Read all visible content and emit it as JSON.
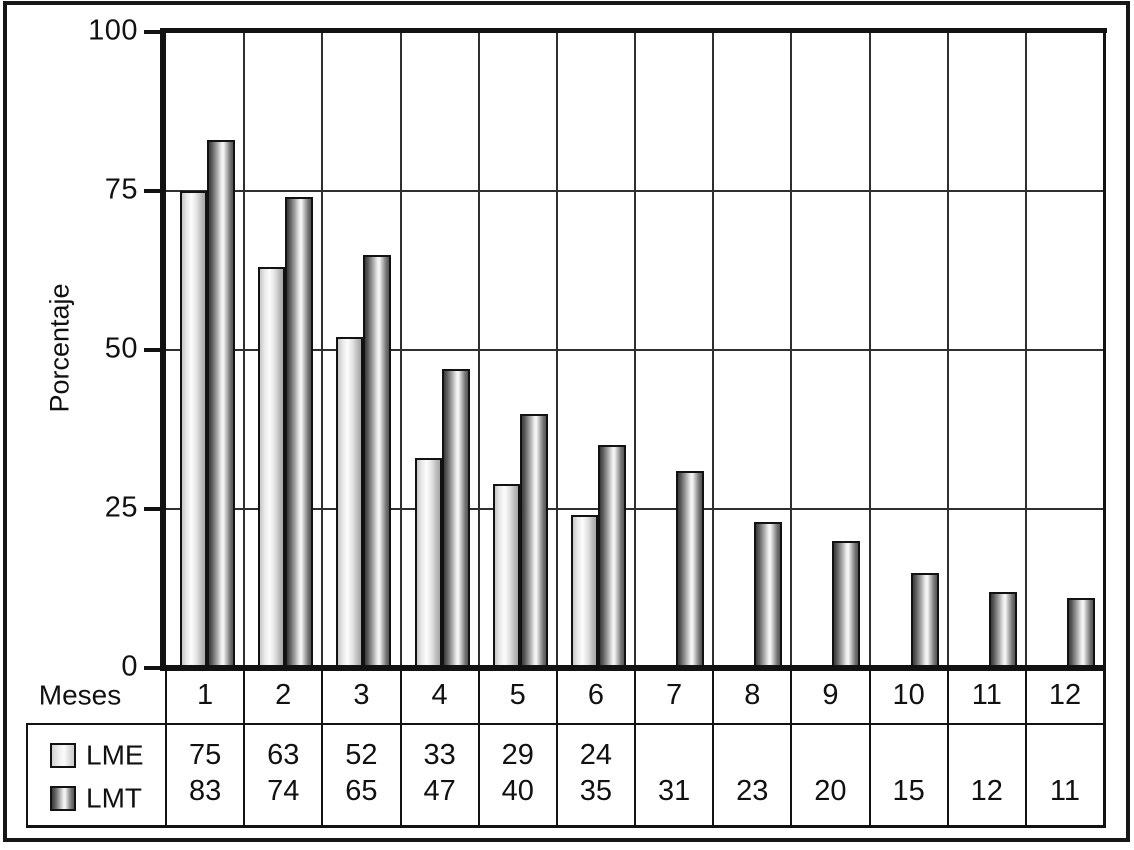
{
  "chart_data": {
    "type": "bar",
    "title": "",
    "ylabel": "Porcentaje",
    "x_axis_label": "Meses",
    "categories": [
      "1",
      "2",
      "3",
      "4",
      "5",
      "6",
      "7",
      "8",
      "9",
      "10",
      "11",
      "12"
    ],
    "ylim": [
      0,
      100
    ],
    "y_ticks": [
      0,
      25,
      50,
      75,
      100
    ],
    "grid": true,
    "legend_position": "bottom-left-table",
    "series": [
      {
        "name": "LME",
        "values": [
          75,
          63,
          52,
          33,
          29,
          24,
          null,
          null,
          null,
          null,
          null,
          null
        ]
      },
      {
        "name": "LMT",
        "values": [
          83,
          74,
          65,
          47,
          40,
          35,
          31,
          23,
          20,
          15,
          12,
          11
        ]
      }
    ]
  },
  "colors": {
    "axis_line": "#121212",
    "grid_line": "#2f2f2f",
    "text": "#111111",
    "background": "#ffffff",
    "lme_bar_mid": "#fcfcfc",
    "lme_bar_edge": "#c6c6c6",
    "lmt_bar_mid": "#f6f6f6",
    "lmt_bar_edge": "#3a3a3a"
  }
}
